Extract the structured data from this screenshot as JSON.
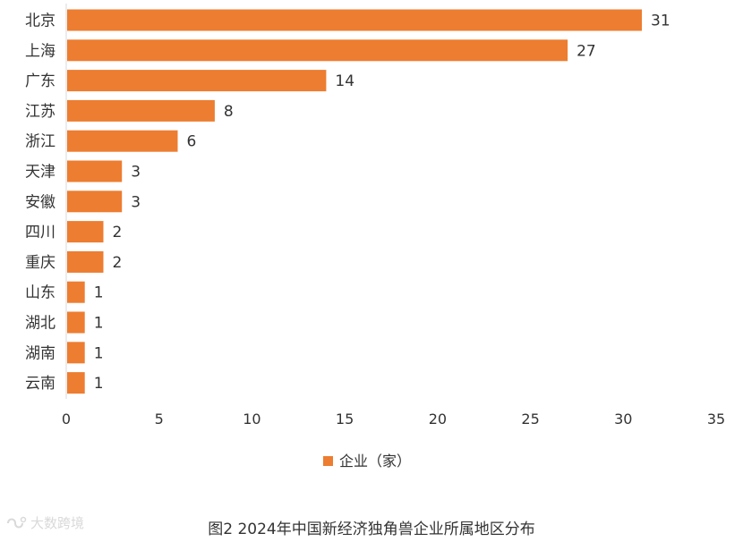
{
  "colors": {
    "bar": "#ED7D31",
    "axis": "#d9d9d9",
    "text": "#333333"
  },
  "chart_data": {
    "type": "bar",
    "orientation": "horizontal",
    "categories": [
      "北京",
      "上海",
      "广东",
      "江苏",
      "浙江",
      "天津",
      "安徽",
      "四川",
      "重庆",
      "山东",
      "湖北",
      "湖南",
      "云南"
    ],
    "series": [
      {
        "name": "企业（家）",
        "values": [
          31,
          27,
          14,
          8,
          6,
          3,
          3,
          2,
          2,
          1,
          1,
          1,
          1
        ]
      }
    ],
    "xlim": [
      0,
      35
    ],
    "xticks": [
      "0",
      "5",
      "10",
      "15",
      "20",
      "25",
      "30",
      "35"
    ],
    "grid": false,
    "legend": "bottom",
    "data_labels": true
  },
  "caption": "图2 2024年中国新经济独角兽企业所属地区分布",
  "watermark": {
    "text": "大数跨境",
    "icon": "logo-icon"
  }
}
